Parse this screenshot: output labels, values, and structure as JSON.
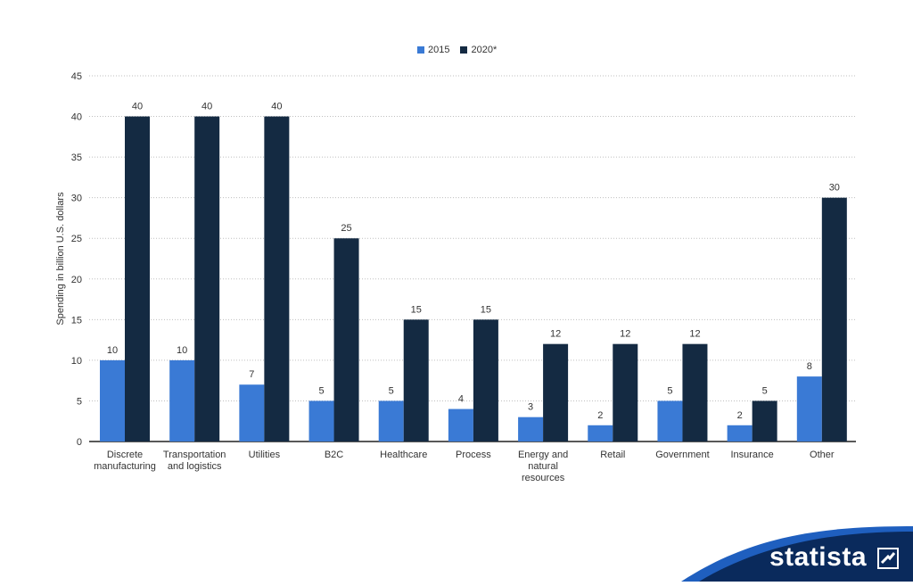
{
  "chart_data": {
    "type": "bar",
    "categories": [
      "Discrete\nmanufacturing",
      "Transportation\nand logistics",
      "Utilities",
      "B2C",
      "Healthcare",
      "Process",
      "Energy and\nnatural\nresources",
      "Retail",
      "Government",
      "Insurance",
      "Other"
    ],
    "series": [
      {
        "name": "2015",
        "values": [
          10,
          10,
          7,
          5,
          5,
          4,
          3,
          2,
          5,
          2,
          8
        ]
      },
      {
        "name": "2020*",
        "values": [
          40,
          40,
          40,
          25,
          15,
          15,
          12,
          12,
          12,
          5,
          30
        ]
      }
    ],
    "ylabel": "Spending in billion U.S. dollars",
    "ylim": [
      0,
      45
    ],
    "yticks": [
      0,
      5,
      10,
      15,
      20,
      25,
      30,
      35,
      40,
      45
    ],
    "grid": true,
    "legend_position": "top-center",
    "colors": {
      "2015": "#3a7ad5",
      "2020*": "#142a42",
      "axis": "#222222",
      "grid": "#bfbfbf",
      "text": "#333333"
    }
  },
  "branding": {
    "logo_text": "statista",
    "logo_bg": "#0a2a5c",
    "logo_accent": "#1f5fbf"
  }
}
